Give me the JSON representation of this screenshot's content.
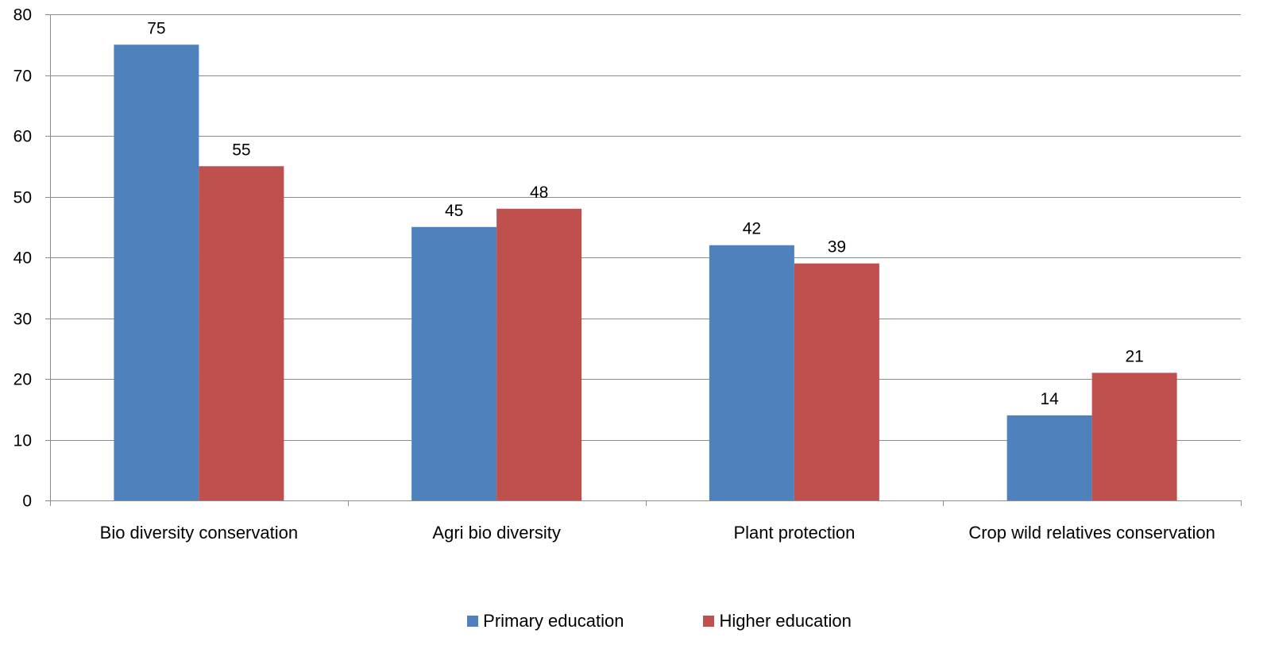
{
  "chart_data": {
    "type": "bar",
    "categories": [
      "Bio diversity conservation",
      "Agri bio diversity",
      "Plant protection",
      "Crop wild relatives conservation"
    ],
    "series": [
      {
        "name": "Primary education",
        "values": [
          75,
          45,
          42,
          14
        ],
        "color": "#4F81BD"
      },
      {
        "name": "Higher education",
        "values": [
          55,
          48,
          39,
          21
        ],
        "color": "#C0504D"
      }
    ],
    "title": "",
    "xlabel": "",
    "ylabel": "",
    "ylim": [
      0,
      80
    ],
    "yticks": [
      0,
      10,
      20,
      30,
      40,
      50,
      60,
      70,
      80
    ],
    "grid": true,
    "legend_position": "bottom",
    "data_labels": true
  }
}
